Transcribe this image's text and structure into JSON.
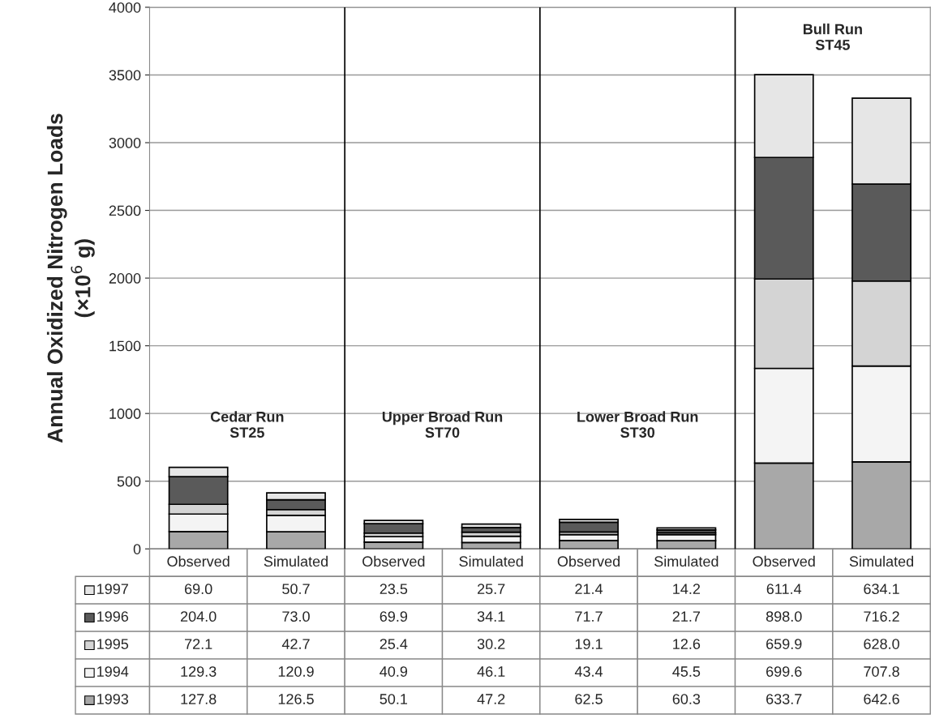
{
  "chart_data": {
    "type": "bar",
    "stacked": true,
    "ylabel": "Annual Oxidized Nitrogen Loads\n(×10$^{6}$ g)",
    "categories": [
      "Observed",
      "Simulated",
      "Observed",
      "Simulated",
      "Observed",
      "Simulated",
      "Observed",
      "Simulated"
    ],
    "series": [
      {
        "name": "1993",
        "color": "#a8a8a8",
        "values": [
          127.8,
          126.5,
          50.1,
          47.2,
          62.5,
          60.3,
          633.7,
          642.6
        ],
        "value_labels": [
          "127.8",
          "126.5",
          "50.1",
          "47.2",
          "62.5",
          "60.3",
          "633.7",
          "642.6"
        ]
      },
      {
        "name": "1994",
        "color": "#f4f4f4",
        "values": [
          129.3,
          120.9,
          40.9,
          46.1,
          43.4,
          45.5,
          699.6,
          707.8
        ],
        "value_labels": [
          "129.3",
          "120.9",
          "40.9",
          "46.1",
          "43.4",
          "45.5",
          "699.6",
          "707.8"
        ]
      },
      {
        "name": "1995",
        "color": "#d4d4d4",
        "values": [
          72.1,
          42.7,
          25.4,
          30.2,
          19.1,
          12.6,
          659.9,
          628.0
        ],
        "value_labels": [
          "72.1",
          "42.7",
          "25.4",
          "30.2",
          "19.1",
          "12.6",
          "659.9",
          "628.0"
        ]
      },
      {
        "name": "1996",
        "color": "#5a5a5a",
        "values": [
          204.0,
          73.0,
          69.9,
          34.1,
          71.7,
          21.7,
          898.0,
          716.2
        ],
        "value_labels": [
          "204.0",
          "73.0",
          "69.9",
          "34.1",
          "71.7",
          "21.7",
          "898.0",
          "716.2"
        ]
      },
      {
        "name": "1997",
        "color": "#e6e6e6",
        "values": [
          69.0,
          50.7,
          23.5,
          25.7,
          21.4,
          14.2,
          611.4,
          634.1
        ],
        "value_labels": [
          "69.0",
          "50.7",
          "23.5",
          "25.7",
          "21.4",
          "14.2",
          "611.4",
          "634.1"
        ]
      }
    ],
    "annotations": [
      "Cedar Run\nST25",
      "Upper Broad Run\nST70",
      "Lower Broad Run\nST30",
      "Bull Run\nST45"
    ],
    "legend": "bottom left",
    "ylim": [
      0,
      4000
    ],
    "yticks": [
      0,
      500,
      1000,
      1500,
      2000,
      2500,
      3000,
      3500,
      4000
    ],
    "grid": "y"
  }
}
